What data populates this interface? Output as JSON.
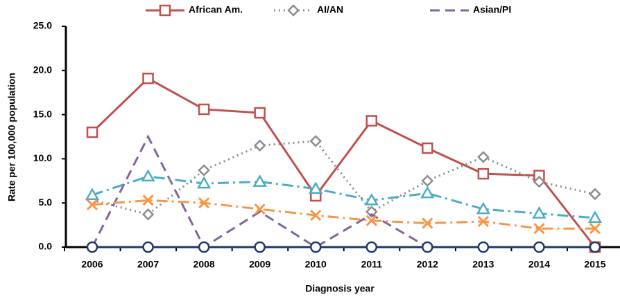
{
  "chart_data": {
    "type": "line",
    "x_label": "Diagnosis year",
    "y_label": "Rate per 100,000 population",
    "categories": [
      "2006",
      "2007",
      "2008",
      "2009",
      "2010",
      "2011",
      "2012",
      "2013",
      "2014",
      "2015"
    ],
    "ylim": [
      0,
      25
    ],
    "yticks": [
      {
        "value": 0,
        "label": "0.0"
      },
      {
        "value": 5,
        "label": "5.0"
      },
      {
        "value": 10,
        "label": "10.0"
      },
      {
        "value": 15,
        "label": "15.0"
      },
      {
        "value": 20,
        "label": "20.0"
      },
      {
        "value": 25,
        "label": "25.0"
      }
    ],
    "series": [
      {
        "name": "African Am.",
        "color": "#c0504d",
        "dash": "solid",
        "marker": "square",
        "values": [
          13.0,
          19.1,
          15.6,
          15.2,
          5.8,
          14.3,
          11.2,
          8.3,
          8.1,
          0.0
        ]
      },
      {
        "name": "AI/AN",
        "color": "#8c8c8c",
        "dash": "dot",
        "marker": "diamond",
        "values": [
          5.3,
          3.7,
          8.7,
          11.5,
          12.0,
          4.0,
          7.5,
          10.2,
          7.4,
          6.0
        ]
      },
      {
        "name": "Asian/PI",
        "color": "#8064a2",
        "dash": "dash",
        "marker": "none",
        "values": [
          0.0,
          12.5,
          0.0,
          4.0,
          0.0,
          3.7,
          0.0,
          0.0,
          0.0,
          0.0
        ]
      },
      {
        "color": "#4bacc6",
        "dash": "dashdot",
        "marker": "triangle",
        "values": [
          5.9,
          8.0,
          7.2,
          7.4,
          6.6,
          5.3,
          6.1,
          4.3,
          3.8,
          3.3
        ]
      },
      {
        "color": "#f79646",
        "dash": "dashdot",
        "marker": "x",
        "values": [
          4.8,
          5.3,
          5.0,
          4.3,
          3.6,
          3.0,
          2.7,
          2.9,
          2.1,
          2.1
        ]
      },
      {
        "color": "#1f3864",
        "dash": "solid",
        "marker": "circle",
        "values": [
          0.0,
          0.0,
          0.0,
          0.0,
          0.0,
          0.0,
          0.0,
          0.0,
          0.0,
          0.0
        ]
      }
    ]
  }
}
